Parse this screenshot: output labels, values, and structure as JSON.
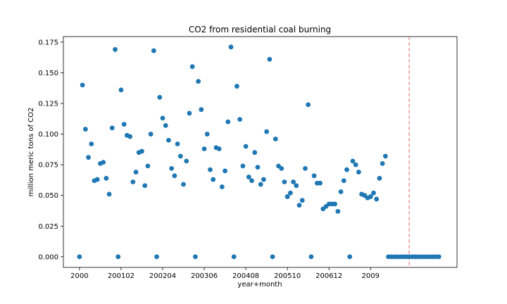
{
  "chart_data": {
    "type": "scatter",
    "title": "CO2 from residential coal burning",
    "xlabel": "year+month",
    "ylabel": "million meric tons of CO2",
    "x_ticks": [
      {
        "label": "2000",
        "index": 0
      },
      {
        "label": "200102",
        "index": 14
      },
      {
        "label": "200204",
        "index": 28
      },
      {
        "label": "200306",
        "index": 42
      },
      {
        "label": "200408",
        "index": 56
      },
      {
        "label": "200510",
        "index": 70
      },
      {
        "label": "200612",
        "index": 84
      },
      {
        "label": "2009",
        "index": 98
      }
    ],
    "y_ticks": [
      0.0,
      0.025,
      0.05,
      0.075,
      0.1,
      0.125,
      0.15,
      0.175
    ],
    "ylim": [
      -0.0087,
      0.1795
    ],
    "xlim": [
      -5.43,
      127.1
    ],
    "grid": false,
    "point_color": "#1f77b4",
    "marker_line": {
      "index": 111,
      "color": "#f08080",
      "style": "dashed"
    },
    "points": [
      [
        0,
        0.0
      ],
      [
        1,
        0.14
      ],
      [
        2,
        0.104
      ],
      [
        3,
        0.081
      ],
      [
        4,
        0.092
      ],
      [
        5,
        0.062
      ],
      [
        6,
        0.063
      ],
      [
        7,
        0.076
      ],
      [
        8,
        0.077
      ],
      [
        9,
        0.064
      ],
      [
        10,
        0.051
      ],
      [
        11,
        0.105
      ],
      [
        12,
        0.169
      ],
      [
        13,
        0.0
      ],
      [
        14,
        0.136
      ],
      [
        15,
        0.108
      ],
      [
        16,
        0.099
      ],
      [
        17,
        0.098
      ],
      [
        18,
        0.061
      ],
      [
        19,
        0.069
      ],
      [
        20,
        0.085
      ],
      [
        21,
        0.086
      ],
      [
        22,
        0.058
      ],
      [
        23,
        0.074
      ],
      [
        24,
        0.1
      ],
      [
        25,
        0.168
      ],
      [
        26,
        0.0
      ],
      [
        27,
        0.13
      ],
      [
        28,
        0.113
      ],
      [
        29,
        0.107
      ],
      [
        30,
        0.095
      ],
      [
        31,
        0.072
      ],
      [
        32,
        0.066
      ],
      [
        33,
        0.092
      ],
      [
        34,
        0.082
      ],
      [
        35,
        0.059
      ],
      [
        36,
        0.078
      ],
      [
        37,
        0.117
      ],
      [
        38,
        0.155
      ],
      [
        39,
        0.0
      ],
      [
        40,
        0.143
      ],
      [
        41,
        0.12
      ],
      [
        42,
        0.088
      ],
      [
        43,
        0.1
      ],
      [
        44,
        0.071
      ],
      [
        45,
        0.063
      ],
      [
        46,
        0.089
      ],
      [
        47,
        0.088
      ],
      [
        48,
        0.057
      ],
      [
        49,
        0.07
      ],
      [
        50,
        0.11
      ],
      [
        51,
        0.171
      ],
      [
        52,
        0.0
      ],
      [
        53,
        0.139
      ],
      [
        54,
        0.112
      ],
      [
        55,
        0.074
      ],
      [
        56,
        0.09
      ],
      [
        57,
        0.065
      ],
      [
        58,
        0.062
      ],
      [
        59,
        0.085
      ],
      [
        60,
        0.073
      ],
      [
        61,
        0.059
      ],
      [
        62,
        0.063
      ],
      [
        63,
        0.102
      ],
      [
        64,
        0.161
      ],
      [
        65,
        0.0
      ],
      [
        66,
        0.096
      ],
      [
        67,
        0.074
      ],
      [
        68,
        0.072
      ],
      [
        69,
        0.061
      ],
      [
        70,
        0.049
      ],
      [
        71,
        0.052
      ],
      [
        72,
        0.061
      ],
      [
        73,
        0.058
      ],
      [
        74,
        0.042
      ],
      [
        75,
        0.046
      ],
      [
        76,
        0.072
      ],
      [
        77,
        0.124
      ],
      [
        78,
        0.0
      ],
      [
        79,
        0.066
      ],
      [
        80,
        0.06
      ],
      [
        81,
        0.06
      ],
      [
        82,
        0.039
      ],
      [
        83,
        0.041
      ],
      [
        84,
        0.043
      ],
      [
        85,
        0.043
      ],
      [
        86,
        0.043
      ],
      [
        87,
        0.037
      ],
      [
        88,
        0.053
      ],
      [
        89,
        0.062
      ],
      [
        90,
        0.071
      ],
      [
        91,
        0.0
      ],
      [
        92,
        0.078
      ],
      [
        93,
        0.075
      ],
      [
        94,
        0.069
      ],
      [
        95,
        0.051
      ],
      [
        96,
        0.05
      ],
      [
        97,
        0.048
      ],
      [
        98,
        0.049
      ],
      [
        99,
        0.052
      ],
      [
        100,
        0.047
      ],
      [
        101,
        0.064
      ],
      [
        102,
        0.076
      ],
      [
        103,
        0.082
      ],
      [
        104,
        0.0
      ],
      [
        105,
        0.0
      ],
      [
        106,
        0.0
      ],
      [
        107,
        0.0
      ],
      [
        108,
        0.0
      ],
      [
        109,
        0.0
      ],
      [
        110,
        0.0
      ],
      [
        111,
        0.0
      ],
      [
        112,
        0.0
      ],
      [
        113,
        0.0
      ],
      [
        114,
        0.0
      ],
      [
        115,
        0.0
      ],
      [
        116,
        0.0
      ],
      [
        117,
        0.0
      ],
      [
        118,
        0.0
      ],
      [
        119,
        0.0
      ],
      [
        120,
        0.0
      ],
      [
        121,
        0.0
      ]
    ]
  }
}
